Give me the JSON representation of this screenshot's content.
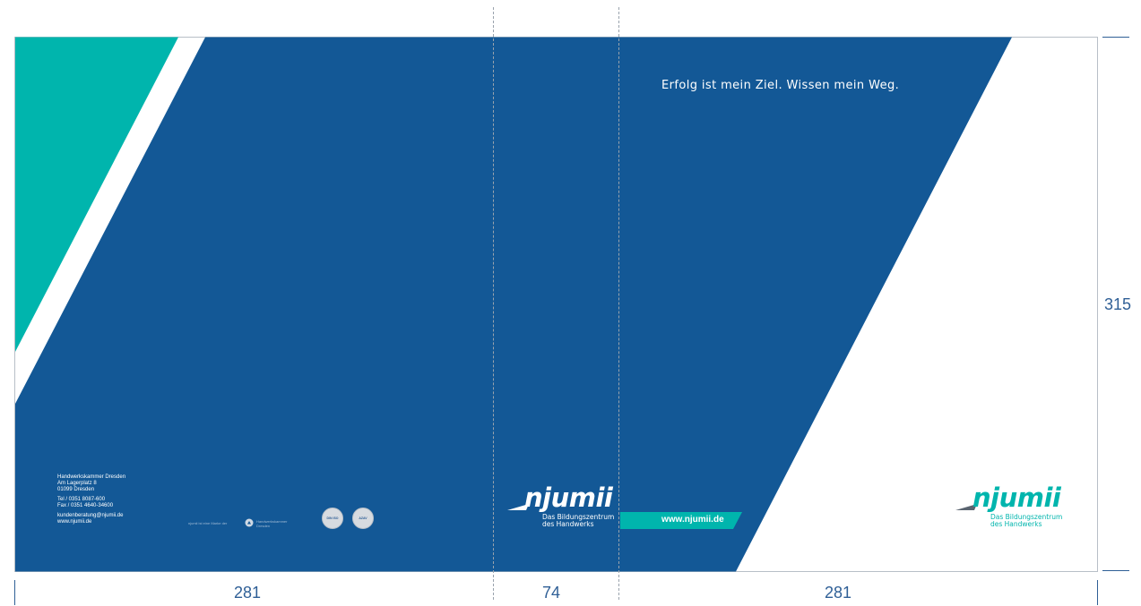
{
  "colors": {
    "navy": "#135896",
    "teal": "#00b5ad",
    "white": "#ffffff",
    "dimension": "#2f5f96",
    "fold_line": "#9aa3ad"
  },
  "dimensions": {
    "back_width": "281",
    "spine_width": "74",
    "front_width": "281",
    "height": "315"
  },
  "back_cover": {
    "address": {
      "org": "Handwerkskammer Dresden",
      "street": "Am Lagerplatz 8",
      "city": "01099 Dresden",
      "tel": "Tel / 0351 8087-600",
      "fax": "Fax / 0351 4640-34600",
      "email": "kundenberatung@njumii.de",
      "web": "www.njumii.de"
    },
    "partner_note": "njumii ist eine Marke der",
    "partner_name_line1": "Handwerkskammer",
    "partner_name_line2": "Dresden",
    "partner_icon": "hwk-logo-icon",
    "seals": [
      "DIN ISO",
      "AZAV"
    ]
  },
  "spine": {
    "logo": {
      "word": "njumii",
      "sub_line1": "Das Bildungszentrum",
      "sub_line2": "des Handwerks"
    }
  },
  "front_cover": {
    "tagline": "Erfolg ist mein Ziel. Wissen mein Weg.",
    "website": "www.njumii.de",
    "logo": {
      "word": "njumii",
      "sub_line1": "Das Bildungszentrum",
      "sub_line2": "des Handwerks"
    }
  }
}
